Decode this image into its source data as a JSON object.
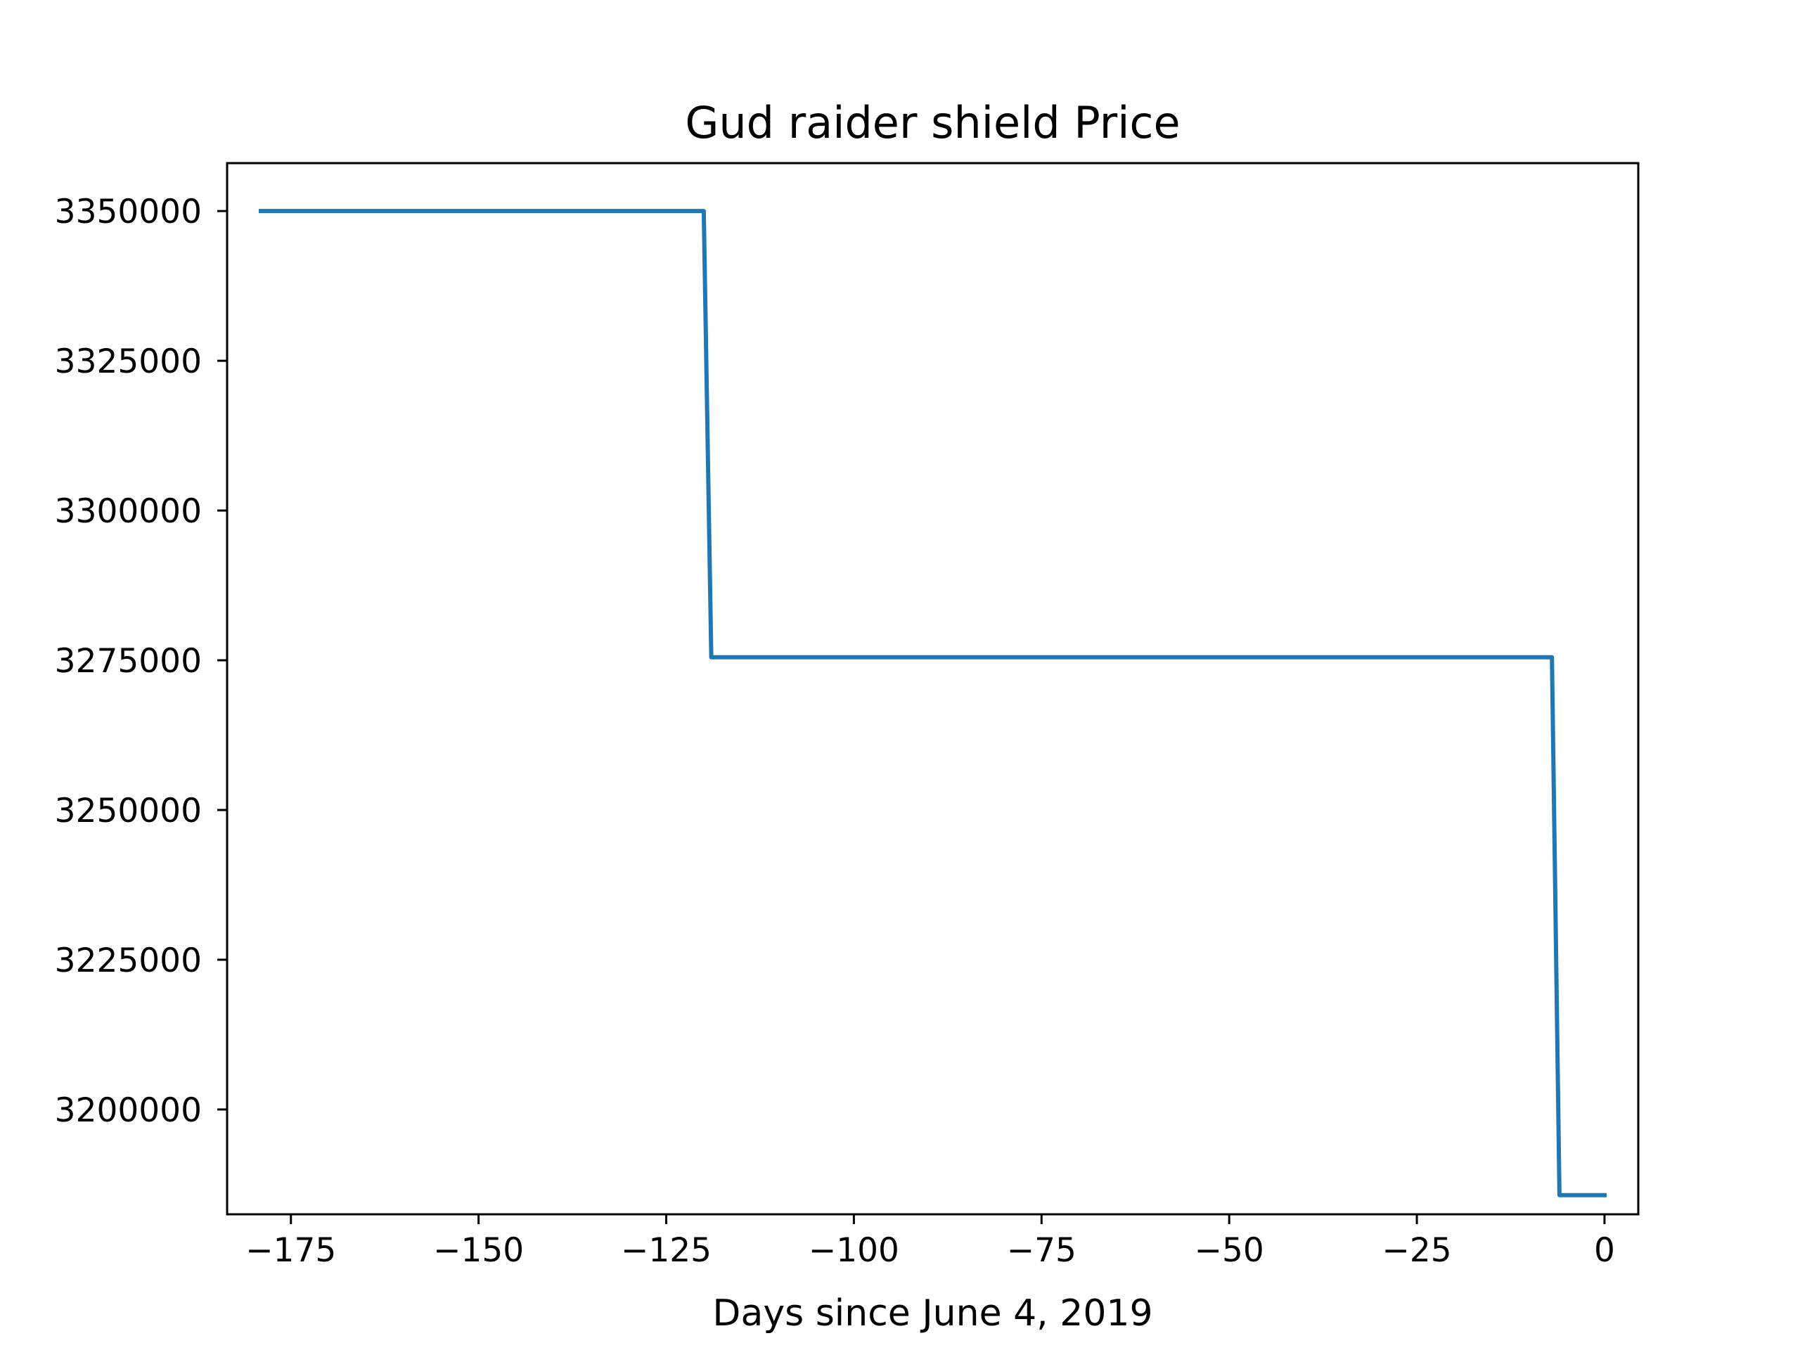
{
  "chart_data": {
    "type": "line",
    "title": "Gud raider shield Price",
    "xlabel": "Days since June 4, 2019",
    "ylabel": "",
    "xlim": [
      -183.5,
      4.5
    ],
    "ylim": [
      3182500,
      3358000
    ],
    "xticks": [
      -175,
      -150,
      -125,
      -100,
      -75,
      -50,
      -25,
      0
    ],
    "xtick_labels": [
      "−175",
      "−150",
      "−125",
      "−100",
      "−75",
      "−50",
      "−25",
      "0"
    ],
    "yticks": [
      3200000,
      3225000,
      3250000,
      3275000,
      3300000,
      3325000,
      3350000
    ],
    "ytick_labels": [
      "3200000",
      "3225000",
      "3250000",
      "3275000",
      "3300000",
      "3325000",
      "3350000"
    ],
    "grid": false,
    "series": [
      {
        "color": "#1f77b4",
        "x": [
          -179,
          -120,
          -119,
          -7,
          -6,
          0
        ],
        "y": [
          3350000,
          3350000,
          3275500,
          3275500,
          3185700,
          3185700
        ]
      }
    ]
  }
}
